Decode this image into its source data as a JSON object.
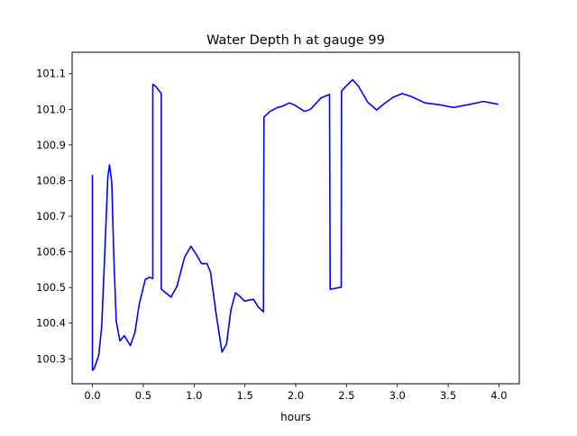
{
  "chart_data": {
    "type": "line",
    "title": "Water Depth h at gauge 99",
    "xlabel": "hours",
    "ylabel": "",
    "xlim": [
      -0.2,
      4.2
    ],
    "ylim": [
      100.23,
      101.16
    ],
    "xticks": [
      0.0,
      0.5,
      1.0,
      1.5,
      2.0,
      2.5,
      3.0,
      3.5,
      4.0
    ],
    "xtick_labels": [
      "0.0",
      "0.5",
      "1.0",
      "1.5",
      "2.0",
      "2.5",
      "3.0",
      "3.5",
      "4.0"
    ],
    "yticks": [
      100.3,
      100.4,
      100.5,
      100.6,
      100.7,
      100.8,
      100.9,
      101.0,
      101.1
    ],
    "ytick_labels": [
      "100.3",
      "100.4",
      "100.5",
      "100.6",
      "100.7",
      "100.8",
      "100.9",
      "101.0",
      "101.1"
    ],
    "grid": false,
    "series": [
      {
        "name": "h",
        "color": "#0000ff",
        "x": [
          0.0,
          0.0,
          0.018,
          0.062,
          0.091,
          0.12,
          0.151,
          0.168,
          0.19,
          0.21,
          0.234,
          0.27,
          0.313,
          0.373,
          0.417,
          0.461,
          0.52,
          0.565,
          0.594,
          0.594,
          0.624,
          0.677,
          0.677,
          0.772,
          0.831,
          0.905,
          0.969,
          1.023,
          1.073,
          1.126,
          1.162,
          1.215,
          1.274,
          1.319,
          1.363,
          1.407,
          1.452,
          1.496,
          1.585,
          1.629,
          1.682,
          1.688,
          1.747,
          1.821,
          1.865,
          1.939,
          1.984,
          2.087,
          2.146,
          2.25,
          2.333,
          2.339,
          2.448,
          2.451,
          2.486,
          2.56,
          2.619,
          2.708,
          2.797,
          2.871,
          2.96,
          3.048,
          3.137,
          3.27,
          3.432,
          3.55,
          3.698,
          3.847,
          3.994
        ],
        "y": [
          100.816,
          100.268,
          100.273,
          100.31,
          100.39,
          100.59,
          100.81,
          100.844,
          100.794,
          100.59,
          100.406,
          100.35,
          100.365,
          100.337,
          100.373,
          100.454,
          100.523,
          100.529,
          100.525,
          101.07,
          101.064,
          101.044,
          100.495,
          100.473,
          100.503,
          100.584,
          100.616,
          100.592,
          100.567,
          100.567,
          100.543,
          100.43,
          100.319,
          100.341,
          100.438,
          100.485,
          100.475,
          100.462,
          100.467,
          100.446,
          100.432,
          100.978,
          100.994,
          101.005,
          101.008,
          101.018,
          101.013,
          100.994,
          101.0,
          101.032,
          101.042,
          100.495,
          100.501,
          101.051,
          101.062,
          101.083,
          101.064,
          101.02,
          100.998,
          101.016,
          101.034,
          101.044,
          101.036,
          101.018,
          101.012,
          101.005,
          101.013,
          101.022,
          101.014
        ]
      }
    ]
  }
}
